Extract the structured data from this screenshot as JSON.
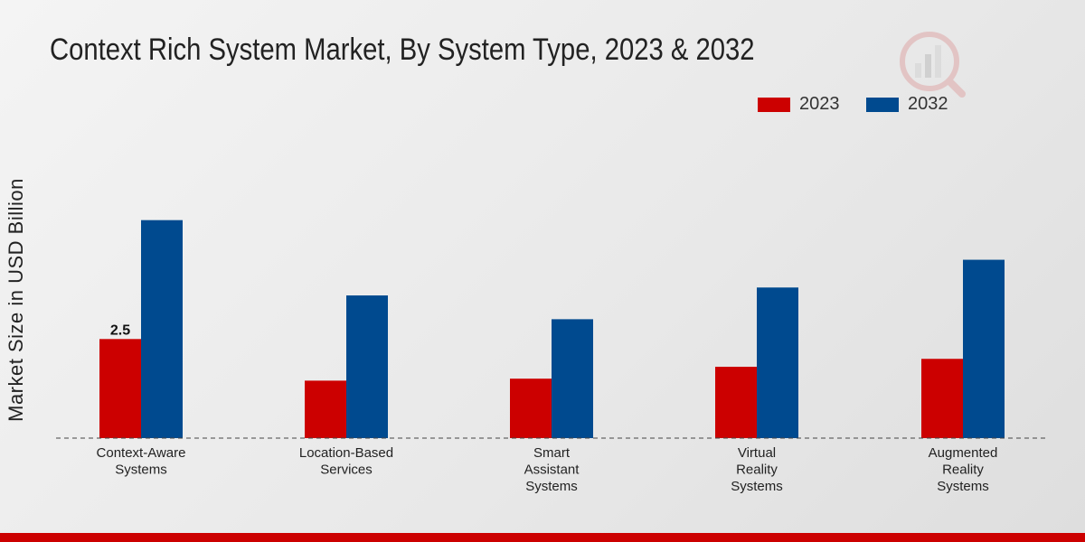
{
  "chart_data": {
    "type": "bar",
    "title": "Context Rich System Market, By System Type, 2023 & 2032",
    "xlabel": "",
    "ylabel": "Market Size in USD Billion",
    "ylim": [
      0,
      8
    ],
    "categories": [
      [
        "Context-Aware",
        "Systems"
      ],
      [
        "Location-Based",
        "Services"
      ],
      [
        "Smart",
        "Assistant",
        "Systems"
      ],
      [
        "Virtual",
        "Reality",
        "Systems"
      ],
      [
        "Augmented",
        "Reality",
        "Systems"
      ]
    ],
    "series": [
      {
        "name": "2023",
        "color": "#cc0000",
        "values": [
          2.5,
          1.45,
          1.5,
          1.8,
          2.0
        ]
      },
      {
        "name": "2032",
        "color": "#004a8f",
        "values": [
          5.5,
          3.6,
          3.0,
          3.8,
          4.5
        ]
      }
    ],
    "data_labels": [
      {
        "series": 0,
        "index": 0,
        "text": "2.5"
      }
    ],
    "legend": "top-right",
    "grid": false
  },
  "theme": {
    "accent_bar": "#cc0000",
    "watermark_color": "#d9a3a3"
  }
}
